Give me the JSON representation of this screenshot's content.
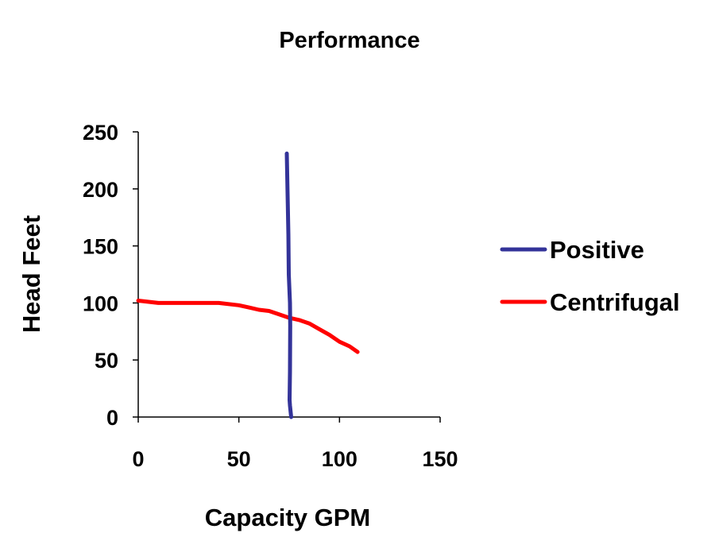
{
  "chart_data": {
    "type": "line",
    "title": "Performance",
    "xlabel": "Capacity GPM",
    "ylabel": "Head Feet",
    "xlim": [
      0,
      150
    ],
    "ylim": [
      0,
      250
    ],
    "xticks": [
      "0",
      "50",
      "100",
      "150"
    ],
    "yticks": [
      "0",
      "50",
      "100",
      "150",
      "200",
      "250"
    ],
    "grid": false,
    "legend_position": "right",
    "series": [
      {
        "name": "Positive",
        "color": "#333399",
        "points": [
          [
            73.8,
            231
          ],
          [
            74.6,
            160
          ],
          [
            74.8,
            125
          ],
          [
            75.4,
            100
          ],
          [
            75.5,
            80
          ],
          [
            75.4,
            40
          ],
          [
            75.2,
            15
          ],
          [
            75.4,
            10
          ],
          [
            76,
            0
          ]
        ]
      },
      {
        "name": "Centrifugal",
        "color": "#ff0000",
        "points": [
          [
            0,
            102
          ],
          [
            10,
            100
          ],
          [
            20,
            100
          ],
          [
            30,
            100
          ],
          [
            40,
            100
          ],
          [
            50,
            98
          ],
          [
            55,
            96
          ],
          [
            60,
            94
          ],
          [
            65,
            93
          ],
          [
            70,
            90
          ],
          [
            75,
            87
          ],
          [
            80,
            85
          ],
          [
            85,
            82
          ],
          [
            90,
            77
          ],
          [
            95,
            72
          ],
          [
            100,
            66
          ],
          [
            105,
            62
          ],
          [
            109,
            57
          ]
        ]
      }
    ]
  }
}
